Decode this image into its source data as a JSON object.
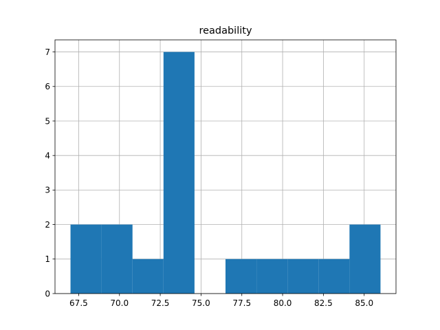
{
  "chart_data": {
    "type": "bar",
    "subtype": "histogram",
    "title": "readability",
    "xlabel": "",
    "ylabel": "",
    "bin_edges": [
      67.0,
      68.9,
      70.8,
      72.7,
      74.6,
      76.5,
      78.4,
      80.3,
      82.2,
      84.1,
      86.0
    ],
    "counts": [
      2,
      2,
      1,
      7,
      0,
      1,
      1,
      1,
      1,
      2
    ],
    "xlim": [
      66.05,
      86.95
    ],
    "ylim": [
      0,
      7.35
    ],
    "xticks": [
      67.5,
      70.0,
      72.5,
      75.0,
      77.5,
      80.0,
      82.5,
      85.0
    ],
    "xtick_labels": [
      "67.5",
      "70.0",
      "72.5",
      "75.0",
      "77.5",
      "80.0",
      "82.5",
      "85.0"
    ],
    "yticks": [
      0,
      1,
      2,
      3,
      4,
      5,
      6,
      7
    ],
    "ytick_labels": [
      "0",
      "1",
      "2",
      "3",
      "4",
      "5",
      "6",
      "7"
    ],
    "grid": true,
    "bar_color": "#1f77b4",
    "grid_color": "#b0b0b0"
  }
}
